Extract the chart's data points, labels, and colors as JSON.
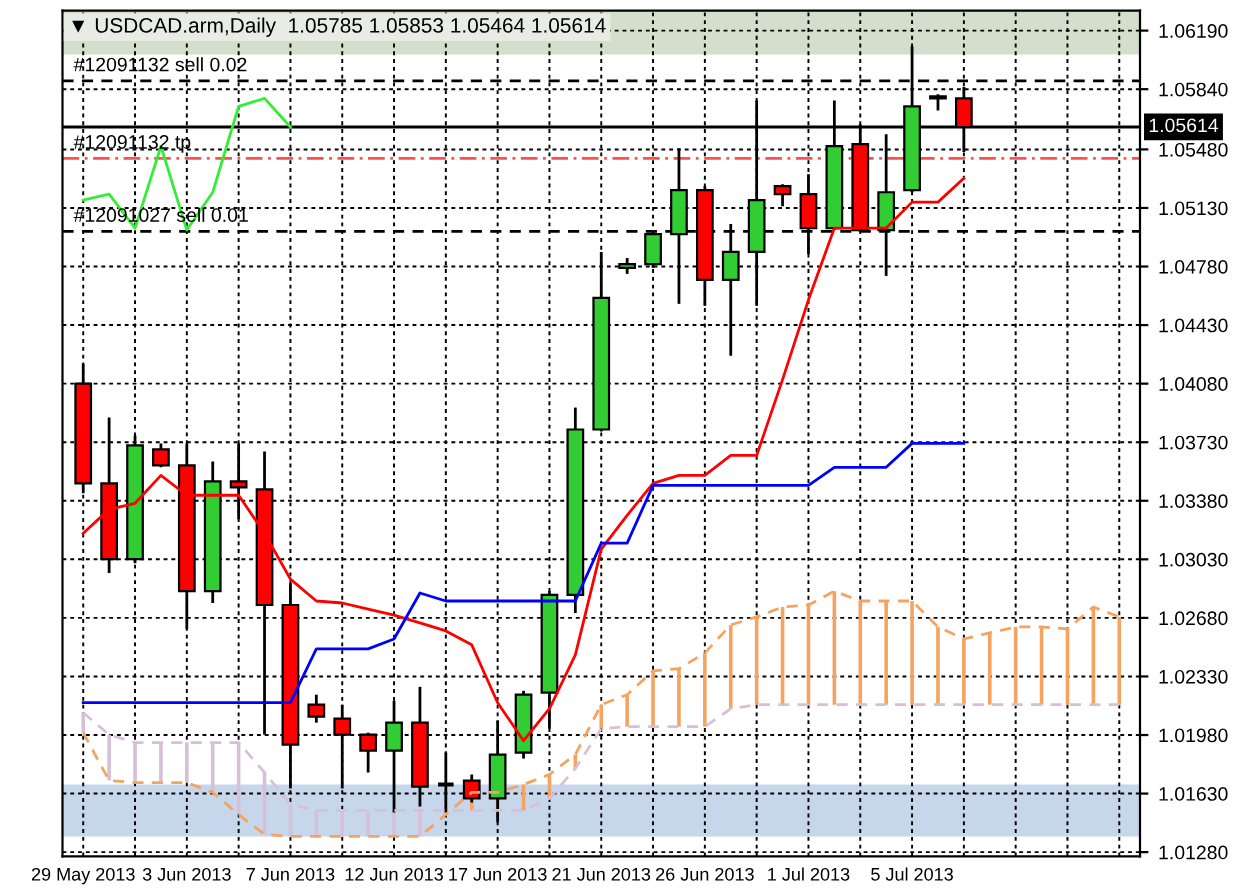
{
  "chart_data": {
    "type": "candlestick",
    "title": "▼ USDCAD.arm,Daily  1.05785 1.05853 1.05464 1.05614",
    "categories": [
      "29 May 2013",
      null,
      null,
      null,
      "3 Jun 2013",
      null,
      null,
      null,
      "7 Jun 2013",
      null,
      null,
      null,
      "12 Jun 2013",
      null,
      null,
      null,
      "17 Jun 2013",
      null,
      null,
      null,
      "21 Jun 2013",
      null,
      null,
      null,
      "26 Jun 2013",
      null,
      null,
      null,
      "1 Jul 2013",
      null,
      null,
      null,
      "5 Jul 2013",
      null,
      null,
      null,
      null,
      null,
      null,
      null,
      null
    ],
    "ohlc": [
      [
        1.0408,
        1.04199,
        1.03425,
        1.03484
      ],
      [
        1.03484,
        1.03878,
        1.02948,
        1.03031
      ],
      [
        1.03031,
        1.0377,
        1.03007,
        1.03711
      ],
      [
        1.03687,
        1.03723,
        1.0358,
        1.03591
      ],
      [
        1.03591,
        1.03723,
        1.02614,
        1.0284
      ],
      [
        1.0284,
        1.03615,
        1.02769,
        1.03496
      ],
      [
        1.03496,
        1.03723,
        1.0327,
        1.0346
      ],
      [
        1.03448,
        1.03675,
        1.01982,
        1.02757
      ],
      [
        1.02757,
        1.02888,
        1.0166,
        1.01923
      ],
      [
        1.02161,
        1.02221,
        1.02054,
        1.0209
      ],
      [
        1.02078,
        1.02161,
        1.0166,
        1.01982
      ],
      [
        1.01982,
        1.01994,
        1.01756,
        1.01887
      ],
      [
        1.01887,
        1.02185,
        1.01517,
        1.02054
      ],
      [
        1.02054,
        1.02268,
        1.01553,
        1.01672
      ],
      [
        1.01684,
        1.01875,
        1.01517,
        1.01684
      ],
      [
        1.01708,
        1.01744,
        1.01577,
        1.01601
      ],
      [
        1.01601,
        1.02066,
        1.01458,
        1.01863
      ],
      [
        1.01875,
        1.02244,
        1.01839,
        1.02221
      ],
      [
        1.02233,
        1.0284,
        1.02018,
        1.02817
      ],
      [
        1.02817,
        1.03937,
        1.02709,
        1.03806
      ],
      [
        1.03806,
        1.04867,
        1.03794,
        1.04593
      ],
      [
        1.04772,
        1.04831,
        1.04736,
        1.04795
      ],
      [
        1.04795,
        1.04986,
        1.04772,
        1.04974
      ],
      [
        1.04974,
        1.05487,
        1.04557,
        1.05236
      ],
      [
        1.05236,
        1.0526,
        1.04545,
        1.047
      ],
      [
        1.047,
        1.05034,
        1.04247,
        1.04867
      ],
      [
        1.04867,
        1.05773,
        1.04545,
        1.05177
      ],
      [
        1.0526,
        1.05272,
        1.05141,
        1.05213
      ],
      [
        1.05213,
        1.05332,
        1.04855,
        1.0501
      ],
      [
        1.0501,
        1.05773,
        1.04998,
        1.05499
      ],
      [
        1.05511,
        1.0563,
        1.04986,
        1.04998
      ],
      [
        1.04998,
        1.0557,
        1.04724,
        1.05224
      ],
      [
        1.05236,
        1.06095,
        1.05224,
        1.05737
      ],
      [
        1.05797,
        1.05809,
        1.05713,
        1.05785
      ],
      [
        1.05785,
        1.05853,
        1.05464,
        1.05614
      ],
      null,
      null,
      null,
      null,
      null,
      null
    ],
    "colors": [
      "#ff0000",
      "#ff0000",
      "#32cd32",
      "#ff0000",
      "#ff0000",
      "#32cd32",
      "#ff0000",
      "#ff0000",
      "#ff0000",
      "#ff0000",
      "#ff0000",
      "#ff0000",
      "#32cd32",
      "#ff0000",
      "#000000",
      "#ff0000",
      "#32cd32",
      "#32cd32",
      "#32cd32",
      "#32cd32",
      "#32cd32",
      "#32cd32",
      "#32cd32",
      "#32cd32",
      "#ff0000",
      "#32cd32",
      "#32cd32",
      "#ff0000",
      "#ff0000",
      "#32cd32",
      "#ff0000",
      "#32cd32",
      "#32cd32",
      "#ff0000",
      "#ff0000",
      null,
      null,
      null,
      null,
      null,
      null
    ],
    "series": [
      {
        "type": "line",
        "line_style": "dashed",
        "color": "#f4a460",
        "values": [
          1.01994,
          1.01708,
          1.01696,
          1.01696,
          1.01696,
          1.01637,
          1.01505,
          1.01386,
          1.01374,
          1.01374,
          1.01374,
          1.01374,
          1.01374,
          1.01374,
          1.01505,
          1.01637,
          1.01637,
          1.01684,
          1.01744,
          1.01863,
          1.02161,
          1.02221,
          1.02364,
          1.02376,
          1.02471,
          1.02638,
          1.02686,
          1.02745,
          1.02757,
          1.0284,
          1.02781,
          1.02781,
          1.02781,
          1.02626,
          1.02554,
          1.0259,
          1.02626,
          1.02626,
          1.02614,
          1.02745,
          1.02686
        ]
      },
      {
        "type": "line",
        "line_style": "dashed",
        "color": "#d8bfd8",
        "values": [
          1.02113,
          1.01982,
          1.01935,
          1.01935,
          1.01935,
          1.01935,
          1.01935,
          1.01756,
          1.01565,
          1.01529,
          1.01529,
          1.01529,
          1.01529,
          1.01529,
          1.01529,
          1.01529,
          1.01529,
          1.01529,
          1.01601,
          1.0178,
          1.02018,
          1.0203,
          1.0203,
          1.0203,
          1.0203,
          1.02137,
          1.02161,
          1.02161,
          1.02161,
          1.02161,
          1.02161,
          1.02161,
          1.02161,
          1.02161,
          1.02161,
          1.02161,
          1.02161,
          1.02161,
          1.02161,
          1.02161,
          1.02161
        ]
      },
      {
        "type": "line",
        "line_style": "solid",
        "color": "#ff0000",
        "values": [
          1.03186,
          1.03329,
          1.03365,
          1.03532,
          1.03413,
          1.03413,
          1.03413,
          1.03186,
          1.02912,
          1.02781,
          1.02769,
          1.02733,
          1.02697,
          1.0265,
          1.02602,
          1.02519,
          1.02173,
          1.01946,
          1.02137,
          1.02459,
          1.03091,
          1.03293,
          1.03484,
          1.03532,
          1.03532,
          1.03651,
          1.03651,
          1.04104,
          1.04581,
          1.0501,
          1.0501,
          1.0501,
          1.05165,
          1.05165,
          1.05308,
          null,
          null,
          null,
          null,
          null,
          null
        ]
      },
      {
        "type": "line",
        "line_style": "solid",
        "color": "#0000ff",
        "values": [
          1.02173,
          1.02173,
          1.02173,
          1.02173,
          1.02173,
          1.02173,
          1.02173,
          1.02173,
          1.02173,
          1.02495,
          1.02495,
          1.02495,
          1.02554,
          1.02829,
          1.02781,
          1.02781,
          1.02781,
          1.02781,
          1.02781,
          1.02781,
          1.03127,
          1.03127,
          1.03472,
          1.03472,
          1.03472,
          1.03472,
          1.03472,
          1.03472,
          1.03472,
          1.0358,
          1.0358,
          1.0358,
          1.03723,
          1.03723,
          1.03723,
          null,
          null,
          null,
          null,
          null,
          null
        ]
      },
      {
        "type": "line",
        "line_style": "solid",
        "color": "#33ee33",
        "values": [
          1.05177,
          1.05213,
          1.0501,
          1.05499,
          1.04998,
          1.05224,
          1.05737,
          1.05785,
          1.05614,
          null,
          null,
          null,
          null,
          null,
          null,
          null,
          null,
          null,
          null,
          null,
          null,
          null,
          null,
          null,
          null,
          null,
          null,
          null,
          null,
          null,
          null,
          null,
          null,
          null,
          null,
          null,
          null,
          null,
          null,
          null,
          null
        ]
      }
    ],
    "ylim": [
      1.01255,
      1.06309
    ],
    "yticks": [
      {
        "value": 1.0128,
        "label": "1.01280"
      },
      {
        "value": 1.0163,
        "label": "1.01630"
      },
      {
        "value": 1.0198,
        "label": "1.01980"
      },
      {
        "value": 1.0233,
        "label": "1.02330"
      },
      {
        "value": 1.0268,
        "label": "1.02680"
      },
      {
        "value": 1.0303,
        "label": "1.03030"
      },
      {
        "value": 1.0338,
        "label": "1.03380"
      },
      {
        "value": 1.0373,
        "label": "1.03730"
      },
      {
        "value": 1.0408,
        "label": "1.04080"
      },
      {
        "value": 1.0443,
        "label": "1.04430"
      },
      {
        "value": 1.0478,
        "label": "1.04780"
      },
      {
        "value": 1.0513,
        "label": "1.05130"
      },
      {
        "value": 1.0548,
        "label": "1.05480"
      },
      {
        "value": 1.0584,
        "label": "1.05840"
      },
      {
        "value": 1.0619,
        "label": "1.06190"
      }
    ],
    "bands": [
      {
        "axis": "y",
        "from": 1.06047,
        "to": 1.06309,
        "color": "#d3dfcc"
      },
      {
        "axis": "y",
        "from": 1.01374,
        "to": 1.01684,
        "color": "#c6d7ec"
      }
    ],
    "ref_lines": [
      {
        "axis": "y",
        "value": 1.0589,
        "label": "#12091132 sell 0.02",
        "color": "#000000",
        "line_style": "dashed"
      },
      {
        "axis": "y",
        "value": 1.05427,
        "label": "#12091132 tp",
        "color": "#ff5050",
        "line_style": "dashdot"
      },
      {
        "axis": "y",
        "value": 1.0499,
        "label": "#12091027 sell 0.01",
        "color": "#000000",
        "line_style": "dashed"
      },
      {
        "axis": "y",
        "value": 1.05614,
        "label": "1.05614",
        "color": "#000000",
        "line_style": "solid"
      }
    ],
    "grid": true,
    "legend": false
  }
}
